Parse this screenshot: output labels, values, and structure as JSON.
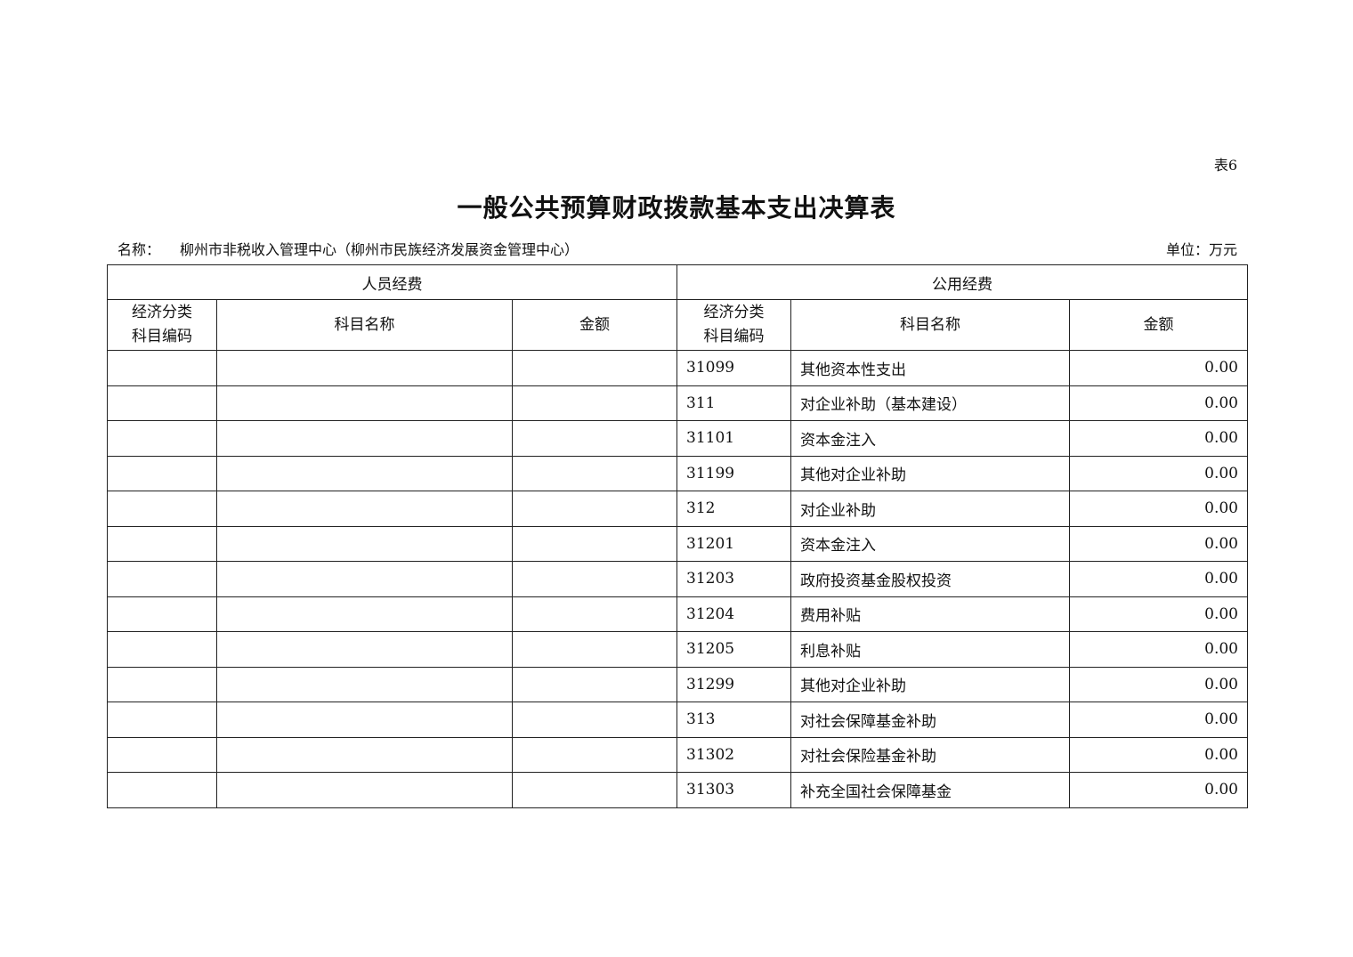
{
  "table_no": "表6",
  "title": "一般公共预算财政拨款基本支出决算表",
  "org_label": "名称：",
  "org_name": "柳州市非税收入管理中心（柳州市民族经济发展资金管理中心）",
  "unit": "单位：万元",
  "groups": {
    "personnel": "人员经费",
    "public": "公用经费"
  },
  "columns": {
    "code": "经济分类科目编码",
    "code_l1": "经济分类",
    "code_l2": "科目编码",
    "name": "科目名称",
    "amount": "金额"
  },
  "rows": [
    {
      "code": "31099",
      "name": "其他资本性支出",
      "amount": "0.00"
    },
    {
      "code": "311",
      "name": "对企业补助（基本建设）",
      "amount": "0.00"
    },
    {
      "code": "31101",
      "name": "资本金注入",
      "amount": "0.00"
    },
    {
      "code": "31199",
      "name": "其他对企业补助",
      "amount": "0.00"
    },
    {
      "code": "312",
      "name": "对企业补助",
      "amount": "0.00"
    },
    {
      "code": "31201",
      "name": "资本金注入",
      "amount": "0.00"
    },
    {
      "code": "31203",
      "name": "政府投资基金股权投资",
      "amount": "0.00"
    },
    {
      "code": "31204",
      "name": "费用补贴",
      "amount": "0.00"
    },
    {
      "code": "31205",
      "name": "利息补贴",
      "amount": "0.00"
    },
    {
      "code": "31299",
      "name": "其他对企业补助",
      "amount": "0.00"
    },
    {
      "code": "313",
      "name": "对社会保障基金补助",
      "amount": "0.00"
    },
    {
      "code": "31302",
      "name": "对社会保险基金补助",
      "amount": "0.00"
    },
    {
      "code": "31303",
      "name": "补充全国社会保障基金",
      "amount": "0.00"
    }
  ]
}
